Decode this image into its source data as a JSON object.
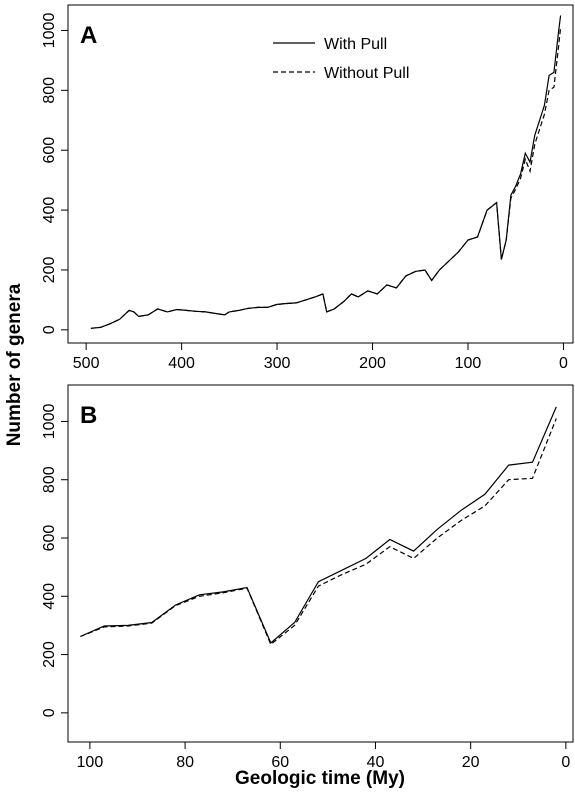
{
  "chart_data": [
    {
      "type": "line",
      "panel_label": "A",
      "ylabel": "Number of genera",
      "x": [
        495,
        485,
        475,
        465,
        455,
        450,
        445,
        435,
        425,
        415,
        405,
        395,
        385,
        375,
        365,
        355,
        350,
        340,
        330,
        320,
        310,
        300,
        290,
        280,
        270,
        260,
        252,
        248,
        240,
        230,
        222,
        215,
        205,
        195,
        185,
        175,
        165,
        155,
        145,
        138,
        130,
        120,
        110,
        100,
        90,
        80,
        70,
        65,
        60,
        55,
        50,
        45,
        40,
        35,
        30,
        25,
        20,
        15,
        10,
        5,
        3
      ],
      "series": [
        {
          "name": "With Pull",
          "style": "solid",
          "color": "#000000",
          "values": [
            5,
            8,
            20,
            35,
            65,
            60,
            45,
            50,
            70,
            60,
            68,
            65,
            62,
            60,
            55,
            50,
            60,
            65,
            72,
            75,
            75,
            85,
            88,
            90,
            100,
            110,
            120,
            60,
            70,
            95,
            120,
            110,
            130,
            120,
            150,
            140,
            180,
            195,
            200,
            165,
            200,
            230,
            260,
            300,
            310,
            400,
            425,
            235,
            300,
            450,
            480,
            520,
            590,
            560,
            650,
            700,
            750,
            850,
            860,
            1000,
            1050
          ]
        },
        {
          "name": "Without Pull",
          "style": "dashed",
          "color": "#000000",
          "values": [
            5,
            8,
            20,
            35,
            65,
            60,
            45,
            50,
            70,
            60,
            68,
            65,
            62,
            60,
            55,
            50,
            60,
            65,
            72,
            75,
            75,
            85,
            88,
            90,
            100,
            110,
            120,
            60,
            70,
            95,
            120,
            110,
            130,
            120,
            150,
            140,
            180,
            195,
            200,
            165,
            200,
            230,
            260,
            300,
            310,
            400,
            425,
            235,
            300,
            440,
            470,
            505,
            570,
            530,
            620,
            670,
            720,
            800,
            810,
            950,
            1010
          ]
        }
      ],
      "xlim": [
        519,
        -10
      ],
      "ylim": [
        -44,
        1085
      ],
      "xticks": [
        500,
        400,
        300,
        200,
        100,
        0
      ],
      "yticks": [
        0,
        200,
        400,
        600,
        800,
        1000
      ]
    },
    {
      "type": "line",
      "panel_label": "B",
      "xlabel": "Geologic time (My)",
      "x": [
        102,
        97,
        92,
        87,
        82,
        77,
        72,
        67,
        62,
        57,
        52,
        47,
        42,
        37,
        32,
        27,
        22,
        17,
        12,
        7,
        2
      ],
      "series": [
        {
          "style": "solid",
          "color": "#000000",
          "values": [
            262,
            298,
            300,
            310,
            370,
            405,
            415,
            430,
            240,
            310,
            450,
            490,
            530,
            595,
            555,
            630,
            695,
            750,
            850,
            860,
            1050
          ]
        },
        {
          "style": "dashed",
          "color": "#000000",
          "values": [
            262,
            295,
            298,
            308,
            368,
            400,
            412,
            428,
            235,
            300,
            435,
            475,
            510,
            570,
            530,
            600,
            660,
            710,
            800,
            805,
            1010
          ]
        }
      ],
      "xlim": [
        104.6,
        -1.5
      ],
      "ylim": [
        -100,
        1125
      ],
      "xticks": [
        100,
        80,
        60,
        40,
        20,
        0
      ],
      "yticks": [
        0,
        200,
        400,
        600,
        800,
        1000
      ]
    }
  ]
}
